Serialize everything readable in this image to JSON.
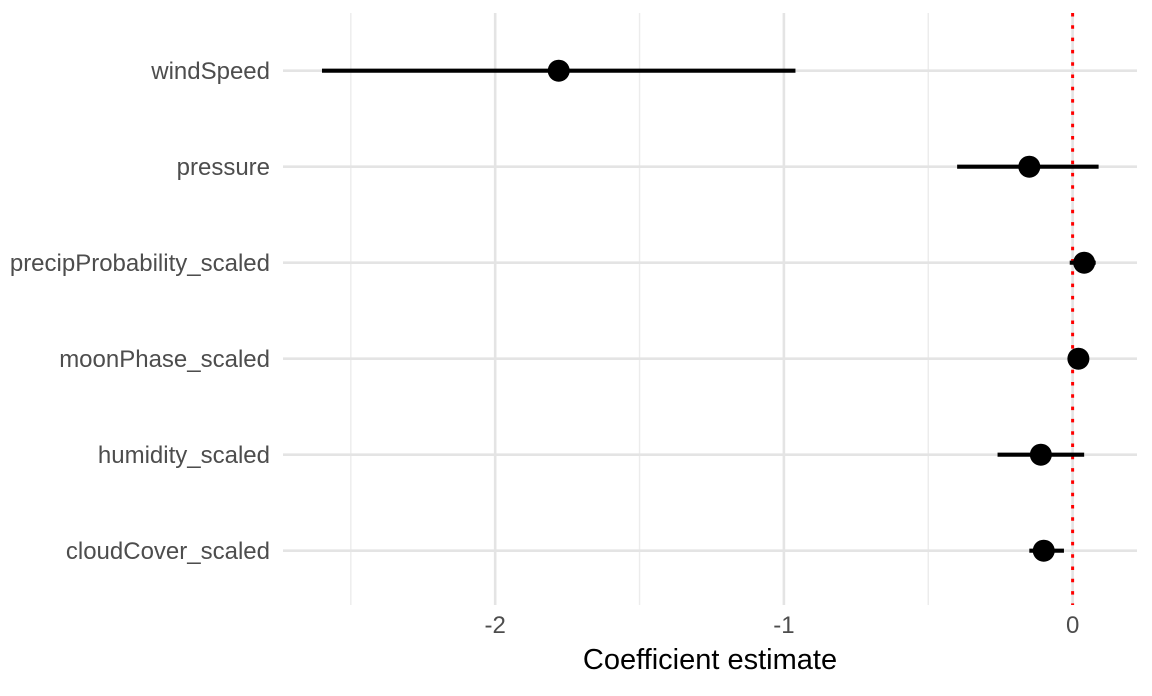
{
  "chart_data": {
    "type": "pointrange",
    "orientation": "horizontal",
    "title": "",
    "xlabel": "Coefficient estimate",
    "ylabel": "",
    "categories": [
      "windSpeed",
      "pressure",
      "precipProbability_scaled",
      "moonPhase_scaled",
      "humidity_scaled",
      "cloudCover_scaled"
    ],
    "points": [
      {
        "term": "windSpeed",
        "estimate": -1.78,
        "ci_low": -2.6,
        "ci_high": -0.96
      },
      {
        "term": "pressure",
        "estimate": -0.15,
        "ci_low": -0.4,
        "ci_high": 0.09
      },
      {
        "term": "precipProbability_scaled",
        "estimate": 0.04,
        "ci_low": -0.01,
        "ci_high": 0.08
      },
      {
        "term": "moonPhase_scaled",
        "estimate": 0.02,
        "ci_low": -0.01,
        "ci_high": 0.05
      },
      {
        "term": "humidity_scaled",
        "estimate": -0.11,
        "ci_low": -0.26,
        "ci_high": 0.04
      },
      {
        "term": "cloudCover_scaled",
        "estimate": -0.1,
        "ci_low": -0.15,
        "ci_high": -0.03
      }
    ],
    "xlim": [
      -2.735,
      0.223
    ],
    "x_major_ticks": [
      -2,
      -1,
      0
    ],
    "x_tick_labels": [
      "-2",
      "-1",
      "0"
    ],
    "x_minor_ticks": [
      -2.5,
      -1.5,
      -0.5
    ],
    "reference_line": {
      "x": 0,
      "style": "dotted",
      "color": "#FF0000"
    },
    "grid": "on",
    "legend": "none",
    "colors": {
      "point": "#000000",
      "errorbar": "#000000",
      "grid_major": "#E4E4E4",
      "grid_minor": "#ECECEC",
      "axis_text": "#4D4D4D",
      "axis_title": "#000000",
      "reference": "#FF0000",
      "background": "#FFFFFF"
    }
  }
}
